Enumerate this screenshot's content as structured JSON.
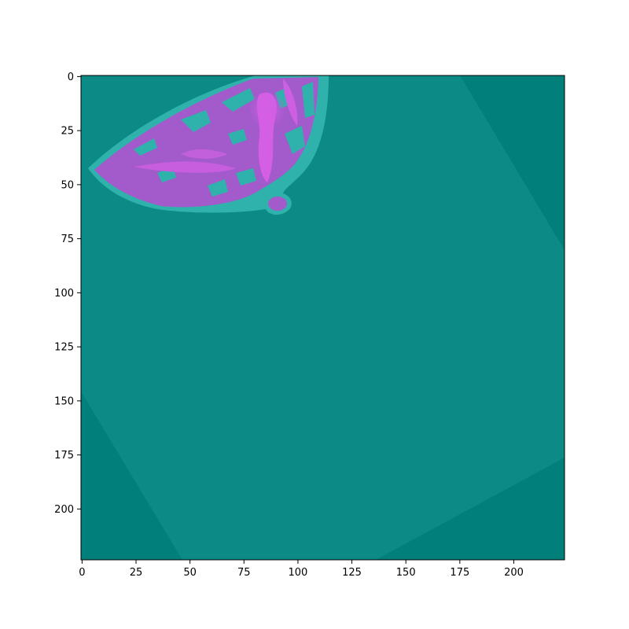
{
  "chart_data": {
    "type": "heatmap",
    "title": "",
    "xlabel": "",
    "ylabel": "",
    "xlim": [
      0,
      224
    ],
    "ylim": [
      224,
      0
    ],
    "x_ticks": [
      "0",
      "25",
      "50",
      "75",
      "100",
      "125",
      "150",
      "175",
      "200"
    ],
    "y_ticks": [
      "0",
      "25",
      "50",
      "75",
      "100",
      "125",
      "150",
      "175",
      "200"
    ],
    "image_size": [
      224,
      224
    ],
    "grid": false,
    "legend": "none",
    "colors": {
      "background": "#007F7B",
      "rotated_region": "#0C8A86",
      "tissue_light": "#2FB2AC",
      "tissue_purple": "#B45CD6",
      "tissue_magenta": "#D45EE4",
      "axes_spine": "#000000"
    }
  }
}
